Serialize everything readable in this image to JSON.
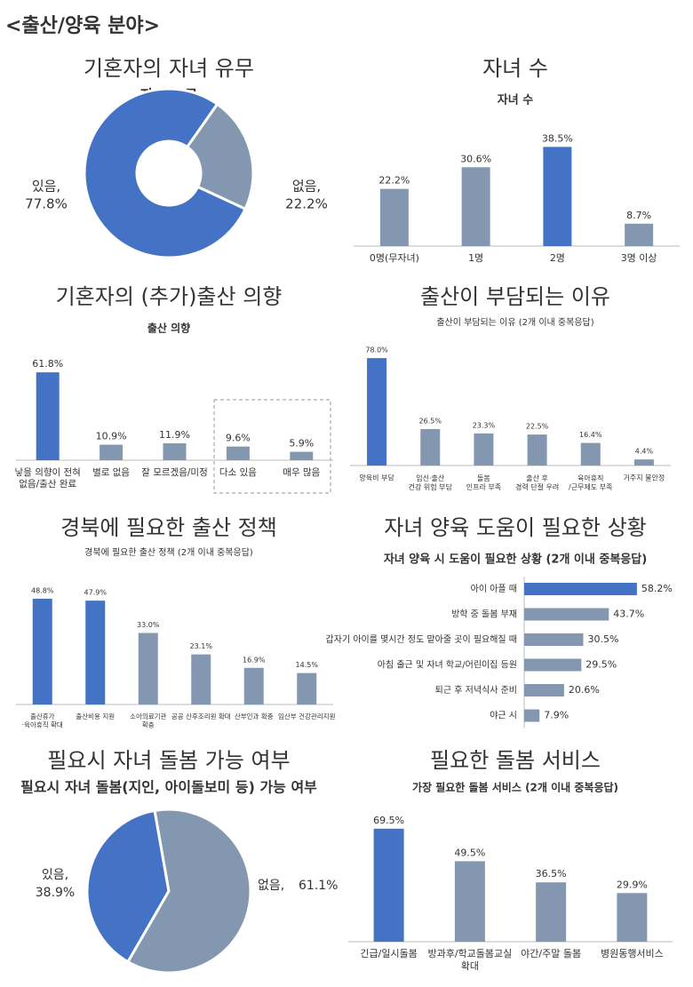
{
  "title": "<출산/양육 분야>",
  "chart_data": [
    {
      "type": "pie",
      "heading": "기혼자의 자녀 유무",
      "title": "자녀 유무",
      "categories": [
        "있음,",
        "없음,"
      ],
      "values": [
        77.8,
        22.2
      ],
      "value_labels": [
        "77.8%",
        "22.2%"
      ],
      "colors": [
        "#4472c4",
        "#8497b0"
      ]
    },
    {
      "type": "bar",
      "heading": "자녀 수",
      "title": "자녀 수",
      "categories": [
        "0명(무자녀)",
        "1명",
        "2명",
        "3명 이상"
      ],
      "values": [
        22.2,
        30.6,
        38.5,
        8.7
      ],
      "value_labels": [
        "22.2%",
        "30.6%",
        "38.5%",
        "8.7%"
      ],
      "colors": [
        "#8497b0",
        "#8497b0",
        "#4472c4",
        "#8497b0"
      ]
    },
    {
      "type": "bar",
      "heading": "기혼자의 (추가)출산 의향",
      "title": "출산 의향",
      "categories": [
        "낳을 의향이 전혀\n없음/출산 완료",
        "별로 없음",
        "잘 모르겠음/미정",
        "다소 있음",
        "매우 많음"
      ],
      "values": [
        61.8,
        10.9,
        11.9,
        9.6,
        5.9
      ],
      "value_labels": [
        "61.8%",
        "10.9%",
        "11.9%",
        "9.6%",
        "5.9%"
      ],
      "colors": [
        "#4472c4",
        "#8497b0",
        "#8497b0",
        "#8497b0",
        "#8497b0"
      ]
    },
    {
      "type": "bar",
      "heading": "출산이 부담되는 이유",
      "title": "출산이 부담되는 이유 (2개 이내 중복응답)",
      "categories": [
        "양육비 부담",
        "임신·출산\n건강 위험 부담",
        "돌봄\n인프라 부족",
        "출산 후\n경력 단절 우려",
        "육아휴직\n/근무제도 부족",
        "거주지 불안정"
      ],
      "values": [
        78.0,
        26.5,
        23.3,
        22.5,
        16.4,
        4.4
      ],
      "value_labels": [
        "78.0%",
        "26.5%",
        "23.3%",
        "22.5%",
        "16.4%",
        "4.4%"
      ],
      "colors": [
        "#4472c4",
        "#8497b0",
        "#8497b0",
        "#8497b0",
        "#8497b0",
        "#8497b0"
      ]
    },
    {
      "type": "bar",
      "heading": "경북에 필요한 출산 정책",
      "title": "경북에 필요한 출산 정책 (2개 이내 중복응답)",
      "categories": [
        "출산휴가\n·육아휴직 확대",
        "출산비용 지원",
        "소아의료기관\n확충",
        "공공 산후조리원 확대",
        "산부인과 확충",
        "임산부 건강관리지원"
      ],
      "values": [
        48.8,
        47.9,
        33.0,
        23.1,
        16.9,
        14.5
      ],
      "value_labels": [
        "48.8%",
        "47.9%",
        "33.0%",
        "23.1%",
        "16.9%",
        "14.5%"
      ],
      "colors": [
        "#4472c4",
        "#4472c4",
        "#8497b0",
        "#8497b0",
        "#8497b0",
        "#8497b0"
      ]
    },
    {
      "type": "hbar",
      "heading": "자녀 양육 도움이 필요한 상황",
      "title": "자녀 양육 시 도움이 필요한 상황 (2개 이내 중복응답)",
      "categories": [
        "아이 아플 때",
        "방학 중 돌봄 부재",
        "갑자기 아이를 몇시간 정도 맡아줄 곳이 필요해질 때",
        "아침 출근 및 자녀 학교/어린이집 등원",
        "퇴근 후 저녁식사 준비",
        "야근 시"
      ],
      "values": [
        58.2,
        43.7,
        30.5,
        29.5,
        20.6,
        7.9
      ],
      "value_labels": [
        "58.2%",
        "43.7%",
        "30.5%",
        "29.5%",
        "20.6%",
        "7.9%"
      ],
      "colors": [
        "#4472c4",
        "#8497b0",
        "#8497b0",
        "#8497b0",
        "#8497b0",
        "#8497b0"
      ]
    },
    {
      "type": "pie",
      "heading": "필요시 자녀 돌봄 가능 여부",
      "title": "필요시 자녀 돌봄(지인, 아이돌보미 등) 가능 여부",
      "categories": [
        "있음,",
        "없음,"
      ],
      "values": [
        38.9,
        61.1
      ],
      "value_labels": [
        "38.9%",
        "61.1%"
      ],
      "colors": [
        "#4472c4",
        "#8497b0"
      ]
    },
    {
      "type": "bar",
      "heading": "필요한 돌봄 서비스",
      "title": "가장 필요한 돌봄 서비스 (2개 이내 중복응답)",
      "categories": [
        "긴급/일시돌봄",
        "방과후/학교돌봄교실\n확대",
        "야간/주말 돌봄",
        "병원동행서비스"
      ],
      "values": [
        69.5,
        49.5,
        36.5,
        29.9
      ],
      "value_labels": [
        "69.5%",
        "49.5%",
        "36.5%",
        "29.9%"
      ],
      "colors": [
        "#4472c4",
        "#8497b0",
        "#8497b0",
        "#8497b0"
      ]
    }
  ]
}
